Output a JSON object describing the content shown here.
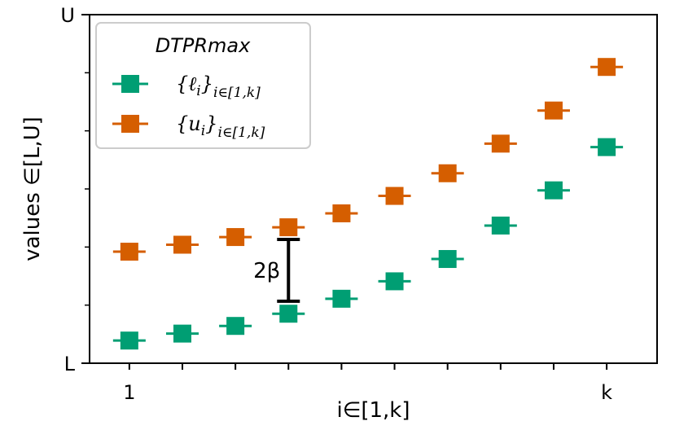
{
  "chart_data": {
    "type": "scatter",
    "x": [
      1,
      2,
      3,
      4,
      5,
      6,
      7,
      8,
      9,
      10
    ],
    "xlim": [
      0.25,
      10.95
    ],
    "ylim": [
      0,
      10
    ],
    "grid": false,
    "xlabel": "i∈[1,k]",
    "ylabel": "values ∈[L,U]",
    "x_tick_labels": [
      {
        "x": 1,
        "label": "1"
      },
      {
        "x": 10,
        "label": "k"
      }
    ],
    "y_tick_labels": [
      {
        "y": 0,
        "label": "L"
      },
      {
        "y": 10,
        "label": "U"
      }
    ],
    "y_minor_ticks": [
      1.667,
      3.333,
      5.0,
      6.667,
      8.333
    ],
    "legend": {
      "title": "DTPRmax",
      "position": "top-left"
    },
    "series": [
      {
        "name": "{ℓi}i∈[1,k]",
        "label_main": "{ℓ",
        "label_sub_i": "i",
        "label_close": "}",
        "label_range": "i∈[1,k]",
        "color": "#009E73",
        "values": [
          0.65,
          0.85,
          1.07,
          1.42,
          1.85,
          2.35,
          2.99,
          3.95,
          4.96,
          6.2
        ]
      },
      {
        "name": "{ui}i∈[1,k]",
        "label_main": "{u",
        "label_sub_i": "i",
        "label_close": "}",
        "label_range": "i∈[1,k]",
        "color": "#D55E00",
        "values": [
          3.2,
          3.4,
          3.62,
          3.9,
          4.3,
          4.8,
          5.45,
          6.3,
          7.25,
          8.5
        ]
      }
    ],
    "annotation": {
      "text": "2β",
      "x": 4,
      "y_from": 1.78,
      "y_to": 3.55
    }
  }
}
